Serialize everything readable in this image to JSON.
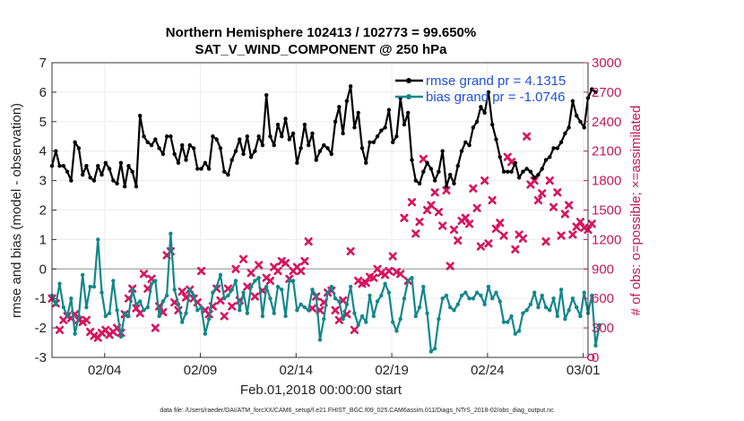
{
  "chart_data": {
    "type": "line",
    "title": "Northern Hemisphere 102413 / 102773 = 99.650%",
    "subtitle": "SAT_V_WIND_COMPONENT @ 250 hPa",
    "xlabel": "Feb.01,2018 00:00:00 start",
    "ylabel": "rmse and bias (model - observation)",
    "ylabel_right": "# of obs: o=possible; ×=assimilated",
    "footnote": "data file: /Users/raeder/DAI/ATM_forcXX/CAM6_setup/f.e21.FHIST_BGC.f09_025.CAM6assim.011/Diags_NTrS_2018-02/obs_diag_output.nc",
    "x_ticks": [
      "02/04",
      "02/09",
      "02/14",
      "02/19",
      "02/24",
      "03/01"
    ],
    "x_tick_days": [
      3,
      8,
      13,
      18,
      23,
      28
    ],
    "xlim_days": [
      0.25,
      28.25
    ],
    "ylim": [
      -3,
      7
    ],
    "y_ticks": [
      -3,
      -2,
      -1,
      0,
      1,
      2,
      3,
      4,
      5,
      6,
      7
    ],
    "ylim_right": [
      0,
      3000
    ],
    "y_ticks_right": [
      0,
      300,
      600,
      900,
      1200,
      1500,
      1800,
      2100,
      2400,
      2700,
      3000
    ],
    "zero_line": 0,
    "grid": true,
    "legend_placement": "top-right",
    "colors": {
      "rmse": "#000000",
      "bias": "#13878a",
      "obs": "#d6145f",
      "axis_right": "#c2185b",
      "legend_text": "#1e4fd8"
    },
    "series": [
      {
        "name": "rmse grand pr = 4.1315",
        "role": "rmse",
        "values": [
          3.5,
          4.0,
          3.5,
          3.5,
          3.3,
          3.0,
          4.3,
          4.1,
          3.2,
          3.5,
          3.1,
          3.0,
          3.5,
          3.2,
          3.6,
          3.4,
          3.0,
          2.9,
          3.6,
          2.8,
          3.5,
          3.3,
          2.8,
          5.2,
          4.5,
          4.3,
          4.2,
          4.4,
          4.1,
          3.9,
          4.5,
          4.5,
          3.9,
          3.6,
          4.2,
          3.7,
          4.2,
          4.1,
          3.4,
          3.4,
          3.6,
          3.4,
          4.5,
          4.4,
          4.1,
          3.3,
          3.2,
          3.7,
          4.0,
          4.4,
          3.9,
          4.5,
          3.8,
          4.0,
          4.5,
          4.2,
          5.9,
          4.5,
          4.2,
          4.9,
          4.5,
          5.1,
          4.4,
          4.6,
          3.6,
          4.1,
          4.9,
          4.2,
          4.6,
          3.7,
          4.0,
          4.2,
          4.1,
          3.9,
          5.0,
          5.5,
          4.6,
          5.7,
          6.2,
          4.8,
          5.3,
          4.1,
          3.6,
          4.3,
          4.3,
          4.5,
          4.7,
          4.8,
          5.4,
          4.3,
          4.5,
          5.8,
          4.9,
          5.3,
          3.7,
          3.0,
          2.9,
          3.3,
          3.6,
          3.4,
          3.0,
          3.3,
          4.0,
          2.8,
          3.2,
          2.9,
          3.5,
          4.0,
          4.3,
          4.2,
          4.8,
          5.0,
          5.5,
          5.3,
          6.0,
          4.9,
          4.4,
          3.8,
          3.3,
          3.3,
          3.3,
          3.6,
          3.1,
          3.3,
          3.4,
          3.3,
          3.1,
          3.2,
          3.4,
          3.7,
          3.8,
          4.1,
          4.1,
          4.3,
          4.6,
          4.8,
          5.7,
          5.2,
          5.0,
          4.8,
          5.8,
          6.1,
          6.0
        ]
      },
      {
        "name": "bias grand pr = -1.0746",
        "role": "bias",
        "values": [
          -0.9,
          -1.2,
          -0.5,
          -1.3,
          -1.6,
          -1.0,
          -2.2,
          -1.6,
          -0.2,
          -1.3,
          -0.6,
          -0.6,
          1.0,
          -0.8,
          -1.6,
          -1.5,
          -0.4,
          -1.4,
          -2.3,
          -1.5,
          -1.6,
          -0.7,
          -1.2,
          -1.1,
          -1.4,
          -1.3,
          -0.5,
          -0.4,
          -1.6,
          -1.1,
          -0.9,
          1.2,
          -0.7,
          -1.2,
          -1.8,
          -1.5,
          -0.7,
          -0.9,
          -1.4,
          -1.3,
          -2.2,
          -1.7,
          -0.8,
          -0.6,
          -0.2,
          -1.0,
          -0.9,
          -0.7,
          -0.4,
          -1.4,
          -0.8,
          -1.5,
          -0.6,
          -0.4,
          -0.3,
          -1.6,
          -0.6,
          -1.0,
          -1.5,
          -0.6,
          -0.7,
          -1.6,
          -0.4,
          -0.4,
          -1.4,
          -1.2,
          -1.3,
          -1.4,
          -0.7,
          -0.9,
          -2.4,
          -1.7,
          -0.8,
          -0.6,
          -1.0,
          -1.1,
          -1.7,
          -1.2,
          -0.6,
          -1.5,
          -1.9,
          -1.6,
          -1.8,
          -0.9,
          -1.6,
          -1.1,
          -0.9,
          -0.5,
          -0.8,
          -1.8,
          -2.1,
          -1.7,
          -1.0,
          -0.4,
          -0.3,
          -1.6,
          -1.3,
          -0.6,
          -1.5,
          -2.8,
          -2.7,
          -1.7,
          -1.0,
          -0.9,
          -1.3,
          -1.4,
          -1.2,
          -0.9,
          -0.8,
          -1.0,
          -1.0,
          -0.8,
          -0.9,
          -1.2,
          -0.6,
          -1.0,
          -0.8,
          -1.1,
          -1.8,
          -1.8,
          -1.6,
          -2.2,
          -2.1,
          -1.5,
          -1.4,
          -1.2,
          -0.8,
          -1.3,
          -0.9,
          -1.3,
          -1.4,
          -1.0,
          -1.6,
          -0.7,
          -1.7,
          -1.4,
          -1.0,
          -1.3,
          -1.6,
          -0.8,
          -1.5,
          -0.9,
          -2.6,
          -1.9
        ]
      },
      {
        "name": "obs assimilated",
        "role": "obs_assimilated",
        "axis": "right",
        "values": [
          600,
          550,
          280,
          380,
          420,
          400,
          440,
          380,
          360,
          380,
          260,
          220,
          200,
          250,
          280,
          230,
          260,
          300,
          250,
          440,
          600,
          700,
          500,
          450,
          850,
          700,
          800,
          300,
          520,
          460,
          1040,
          1080,
          560,
          480,
          670,
          610,
          690,
          600,
          560,
          880,
          480,
          440,
          520,
          700,
          580,
          420,
          700,
          520,
          900,
          580,
          1000,
          720,
          860,
          620,
          940,
          680,
          810,
          780,
          920,
          880,
          980,
          960,
          800,
          880,
          920,
          880,
          980,
          1180,
          500,
          620,
          480,
          560,
          660,
          680,
          480,
          380,
          580,
          440,
          1080,
          280,
          780,
          750,
          760,
          820,
          810,
          900,
          860,
          840,
          880,
          1030,
          870,
          850,
          1420,
          780,
          1580,
          1260,
          1380,
          2020,
          1500,
          1550,
          1680,
          1480,
          1340,
          1700,
          930,
          1300,
          1190,
          1390,
          1420,
          1360,
          1720,
          1520,
          1130,
          1800,
          1160,
          1600,
          1310,
          1370,
          1240,
          2040,
          1990,
          1100,
          1250,
          1210,
          2250,
          1760,
          1800,
          1600,
          1670,
          1180,
          1800,
          1530,
          1680,
          1240,
          1460,
          1550,
          1250,
          1330,
          1380,
          1320,
          1300,
          1360
        ]
      }
    ],
    "obs_possible_marker_ring": {
      "role": "obs_possible",
      "axis": "right",
      "x_day": 28.4,
      "value": 0
    }
  }
}
